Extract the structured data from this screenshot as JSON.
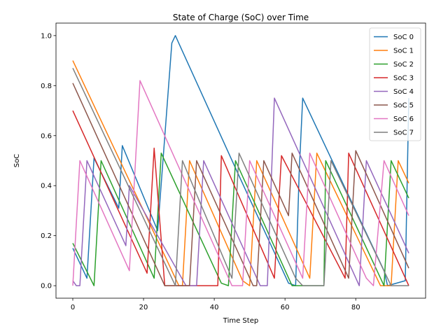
{
  "chart_data": {
    "type": "line",
    "title": "State of Charge (SoC) over Time",
    "xlabel": "Time Step",
    "ylabel": "SoC",
    "xlim": [
      -4.75,
      99.75
    ],
    "ylim": [
      -0.05,
      1.05
    ],
    "xticks": [
      0,
      20,
      40,
      60,
      80
    ],
    "yticks": [
      0.0,
      0.2,
      0.4,
      0.6,
      0.8,
      1.0
    ],
    "xtick_labels": [
      "0",
      "20",
      "40",
      "60",
      "80"
    ],
    "ytick_labels": [
      "0.0",
      "0.2",
      "0.4",
      "0.6",
      "0.8",
      "1.0"
    ],
    "grid": false,
    "legend_position": "top-right",
    "series": [
      {
        "name": "SoC 0",
        "color": "#1f77b4",
        "points": [
          [
            0,
            0.15
          ],
          [
            4,
            0.03
          ],
          [
            6,
            0.51
          ],
          [
            13,
            0.31
          ],
          [
            14,
            0.56
          ],
          [
            24,
            0.22
          ],
          [
            28,
            0.97
          ],
          [
            29,
            1.0
          ],
          [
            46,
            0.47
          ],
          [
            61,
            0.01
          ],
          [
            63,
            0.0
          ],
          [
            64,
            0.45
          ],
          [
            65,
            0.75
          ],
          [
            82,
            0.24
          ],
          [
            88,
            0.06
          ],
          [
            89,
            0.0
          ],
          [
            94,
            0.02
          ],
          [
            95,
            0.75
          ]
        ]
      },
      {
        "name": "SoC 1",
        "color": "#ff7f0e",
        "points": [
          [
            0,
            0.9
          ],
          [
            30,
            0.0
          ],
          [
            31,
            0.0
          ],
          [
            33,
            0.5
          ],
          [
            48,
            0.02
          ],
          [
            50,
            0.0
          ],
          [
            52,
            0.5
          ],
          [
            67,
            0.03
          ],
          [
            69,
            0.53
          ],
          [
            87,
            0.0
          ],
          [
            90,
            0.0
          ],
          [
            92,
            0.5
          ],
          [
            95,
            0.41
          ]
        ]
      },
      {
        "name": "SoC 2",
        "color": "#2ca02c",
        "points": [
          [
            0,
            0.17
          ],
          [
            6,
            0.0
          ],
          [
            8,
            0.5
          ],
          [
            23,
            0.03
          ],
          [
            25,
            0.53
          ],
          [
            42,
            0.01
          ],
          [
            44,
            0.0
          ],
          [
            46,
            0.5
          ],
          [
            62,
            0.0
          ],
          [
            65,
            0.0
          ],
          [
            71,
            0.0
          ],
          [
            71.5,
            0.5
          ],
          [
            88,
            0.0
          ],
          [
            90,
            0.5
          ],
          [
            95,
            0.35
          ]
        ]
      },
      {
        "name": "SoC 3",
        "color": "#d62728",
        "points": [
          [
            0,
            0.7
          ],
          [
            21,
            0.05
          ],
          [
            23,
            0.55
          ],
          [
            26,
            0.0
          ],
          [
            31,
            0.0
          ],
          [
            41,
            0.0
          ],
          [
            42,
            0.52
          ],
          [
            57,
            0.03
          ],
          [
            59,
            0.52
          ],
          [
            77,
            0.03
          ],
          [
            78,
            0.53
          ],
          [
            95,
            0.0
          ]
        ]
      },
      {
        "name": "SoC 4",
        "color": "#9467bd",
        "points": [
          [
            0,
            0.02
          ],
          [
            1,
            0.0
          ],
          [
            2,
            0.0
          ],
          [
            4,
            0.5
          ],
          [
            15,
            0.16
          ],
          [
            16,
            0.4
          ],
          [
            32,
            0.0
          ],
          [
            35,
            0.0
          ],
          [
            37,
            0.5
          ],
          [
            53,
            0.0
          ],
          [
            55,
            0.0
          ],
          [
            57,
            0.75
          ],
          [
            81,
            0.0
          ],
          [
            83,
            0.5
          ],
          [
            95,
            0.13
          ]
        ]
      },
      {
        "name": "SoC 5",
        "color": "#8c564b",
        "points": [
          [
            0,
            0.81
          ],
          [
            26,
            0.0
          ],
          [
            33,
            0.0
          ],
          [
            35,
            0.5
          ],
          [
            51,
            0.0
          ],
          [
            52,
            0.0
          ],
          [
            54,
            0.5
          ],
          [
            61,
            0.28
          ],
          [
            62,
            0.53
          ],
          [
            78,
            0.03
          ],
          [
            80,
            0.54
          ],
          [
            95,
            0.07
          ]
        ]
      },
      {
        "name": "SoC 6",
        "color": "#e377c2",
        "points": [
          [
            0,
            0.0
          ],
          [
            2,
            0.5
          ],
          [
            16,
            0.06
          ],
          [
            19,
            0.82
          ],
          [
            45,
            0.0
          ],
          [
            48,
            0.0
          ],
          [
            50,
            0.5
          ],
          [
            65,
            0.03
          ],
          [
            67,
            0.53
          ],
          [
            83,
            0.03
          ],
          [
            85,
            0.0
          ],
          [
            88,
            0.5
          ],
          [
            95,
            0.28
          ]
        ]
      },
      {
        "name": "SoC 7",
        "color": "#7f7f7f",
        "points": [
          [
            0,
            0.87
          ],
          [
            29,
            0.0
          ],
          [
            31,
            0.5
          ],
          [
            45,
            0.03
          ],
          [
            47,
            0.53
          ],
          [
            63,
            0.03
          ],
          [
            65,
            0.0
          ],
          [
            71,
            0.0
          ],
          [
            73,
            0.5
          ],
          [
            90,
            0.0
          ],
          [
            95,
            0.0
          ]
        ]
      }
    ]
  }
}
